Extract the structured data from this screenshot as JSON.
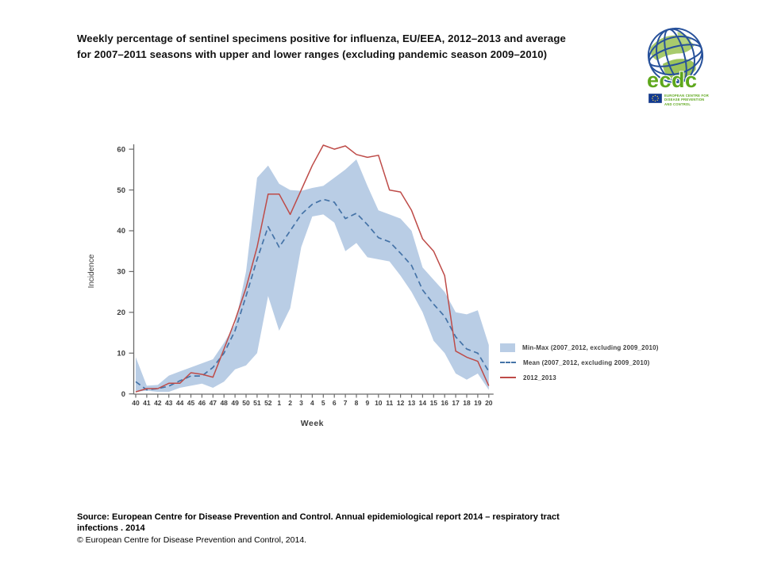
{
  "title": {
    "line1": "Weekly percentage of sentinel specimens positive for influenza, EU/EEA, 2012–2013 and average",
    "line2": "for 2007–2011 seasons with upper and lower ranges (excluding pandemic season 2009–2010)"
  },
  "logo": {
    "wordmark": "ecdc",
    "org_lines": [
      "EUROPEAN CENTRE FOR",
      "DISEASE PREVENTION",
      "AND CONTROL"
    ],
    "green": "#5ea71c",
    "navy": "#27519b"
  },
  "chart_data": {
    "type": "area",
    "title": "",
    "xlabel": "Week",
    "ylabel": "Incidence",
    "ylim": [
      0,
      62
    ],
    "y_ticks": [
      0,
      10,
      20,
      30,
      40,
      50,
      60
    ],
    "grid": "off",
    "legend_position": "right",
    "categories": [
      "40",
      "41",
      "42",
      "43",
      "44",
      "45",
      "46",
      "47",
      "48",
      "49",
      "50",
      "51",
      "52",
      "1",
      "2",
      "3",
      "4",
      "5",
      "6",
      "7",
      "8",
      "9",
      "10",
      "11",
      "12",
      "13",
      "14",
      "15",
      "16",
      "17",
      "18",
      "19",
      "20"
    ],
    "series": [
      {
        "name": "Min-Max (2007_2012, excluding 2009_2010)",
        "type": "band",
        "color": "#b9cde5",
        "lower": [
          0.5,
          0.8,
          0.5,
          0.5,
          1.5,
          2,
          2.5,
          1.5,
          3,
          6,
          7,
          10,
          24,
          15.5,
          21,
          36,
          43.5,
          44,
          42,
          35,
          37,
          33.5,
          33,
          32.5,
          29,
          25,
          20,
          13,
          10,
          5,
          3.5,
          5,
          1
        ],
        "upper": [
          9,
          2,
          2.2,
          4.5,
          5.5,
          6.5,
          7.5,
          8.5,
          12.5,
          17,
          30,
          53,
          56,
          51.5,
          50,
          49.8,
          50.5,
          51,
          53,
          55,
          57.5,
          51,
          45,
          44,
          43,
          40,
          31,
          28,
          25,
          20,
          19.5,
          20.5,
          12
        ]
      },
      {
        "name": "Mean (2007_2012, excluding 2009_2010)",
        "type": "line",
        "style": "dashed",
        "color": "#4573a7",
        "values": [
          3,
          1,
          1.3,
          1.9,
          3.2,
          4.4,
          4.4,
          6.5,
          10,
          15.5,
          24,
          33,
          41,
          36,
          40,
          44,
          46.5,
          47.7,
          47,
          43,
          44.3,
          41.5,
          38.3,
          37.3,
          34.5,
          31.5,
          25.5,
          22,
          19,
          14,
          11,
          10,
          5.5
        ]
      },
      {
        "name": "2012_2013",
        "type": "line",
        "style": "solid",
        "color": "#be4b48",
        "values": [
          0.5,
          1.3,
          1.3,
          2.6,
          2.6,
          5.2,
          4.8,
          4.1,
          11,
          18,
          26,
          36,
          49,
          49,
          44,
          50,
          56,
          61,
          60,
          60.8,
          58.7,
          58,
          58.5,
          50,
          49.5,
          45,
          38,
          35,
          29,
          10.5,
          9,
          8,
          2
        ]
      }
    ],
    "axis_color": "#6b6b6b",
    "tick_label_color": "#3d3d3d"
  },
  "source": {
    "line1": "Source: European Centre for Disease Prevention and Control.  Annual epidemiological report 2014 – respiratory tract",
    "line2": "infections . 2014",
    "line3": "© European Centre for Disease Prevention and Control, 2014."
  }
}
